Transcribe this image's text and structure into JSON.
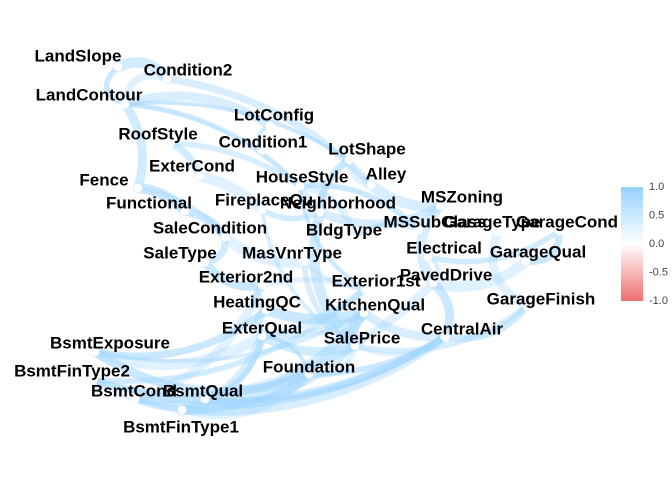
{
  "chart_data": {
    "type": "network",
    "title": "",
    "nodes": [
      "LandSlope",
      "Condition2",
      "LandContour",
      "LotConfig",
      "RoofStyle",
      "Condition1",
      "LotShape",
      "ExterCond",
      "HouseStyle",
      "Alley",
      "Fence",
      "Functional",
      "FireplaceQu",
      "Neighborhood",
      "MSZoning",
      "SaleCondition",
      "BldgType",
      "MSSubClass",
      "GarageType",
      "GarageCond",
      "SaleType",
      "MasVnrType",
      "Electrical",
      "GarageQual",
      "Exterior2nd",
      "Exterior1st",
      "PavedDrive",
      "GarageFinish",
      "HeatingQC",
      "KitchenQual",
      "ExterQual",
      "CentralAir",
      "SalePrice",
      "BsmtExposure",
      "Foundation",
      "BsmtFinType2",
      "BsmtCond",
      "BsmtQual",
      "BsmtFinType1"
    ],
    "edge_colour": "#a5d8ff",
    "legend": {
      "min": -1.0,
      "max": 1.0,
      "ticks": [
        "1.0",
        "0.5",
        "0.0",
        "-0.5",
        "-1.0"
      ],
      "colors": {
        "high": "#96d1ff",
        "mid": "#ffffff",
        "low": "#ef6f6f"
      }
    }
  }
}
